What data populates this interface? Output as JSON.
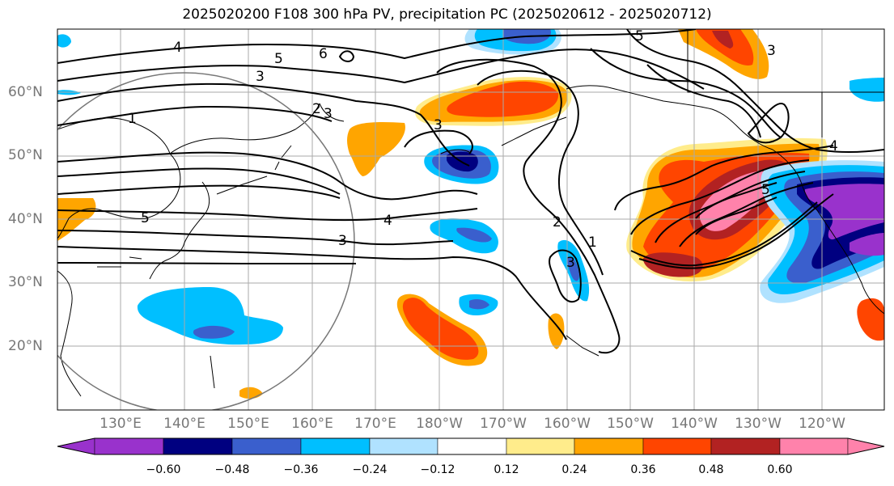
{
  "title": "2025020200 F108 300 hPa PV, precipitation PC (2025020612 - 2025020712)",
  "lat_labels": [
    "60°N",
    "50°N",
    "40°N",
    "30°N",
    "20°N"
  ],
  "lon_labels": [
    "130°E",
    "140°E",
    "150°E",
    "160°E",
    "170°E",
    "180°W",
    "170°W",
    "160°W",
    "150°W",
    "140°W",
    "130°W",
    "120°W"
  ],
  "colorbar": {
    "labels": [
      "−0.60",
      "−0.48",
      "−0.36",
      "−0.24",
      "−0.12",
      "0.12",
      "0.24",
      "0.36",
      "0.48",
      "0.60"
    ],
    "colors": [
      "#9932CC",
      "#000080",
      "#3A5FCD",
      "#00BFFF",
      "#B0E2FF",
      "#FFFFFF",
      "#FFEC8B",
      "#FFA500",
      "#FF4500",
      "#B22222",
      "#FF82AB"
    ]
  },
  "contour_labels": [
    "4",
    "5",
    "6",
    "3",
    "1",
    "2",
    "5",
    "3",
    "4",
    "3",
    "2",
    "3",
    "1",
    "5",
    "4",
    "3",
    "5",
    "3"
  ]
}
